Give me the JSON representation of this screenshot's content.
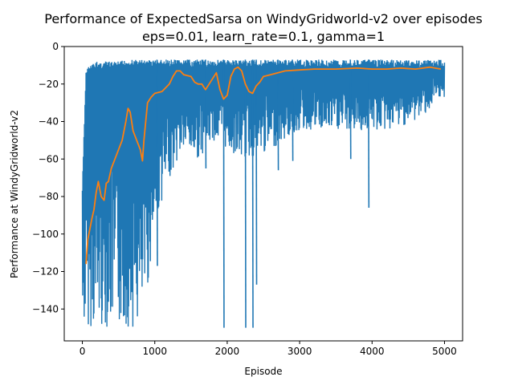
{
  "chart_data": {
    "type": "line",
    "title": "Performance of ExpectedSarsa on WindyGridworld-v2 over episodes",
    "subtitle": "eps=0.01, learn_rate=0.1, gamma=1",
    "xlabel": "Episode",
    "ylabel": "Performance at WindyGridworld-v2",
    "xlim": [
      -250,
      5250
    ],
    "ylim": [
      -157,
      0
    ],
    "xticks": [
      0,
      1000,
      2000,
      3000,
      4000,
      5000
    ],
    "yticks": [
      0,
      -20,
      -40,
      -60,
      -80,
      -100,
      -120,
      -140
    ],
    "grid": false,
    "series": [
      {
        "name": "",
        "color": "#1f77b4",
        "kind": "raw-envelope",
        "x": [
          0,
          50,
          100,
          150,
          200,
          300,
          400,
          500,
          600,
          700,
          800,
          900,
          1000,
          1200,
          1400,
          1600,
          1800,
          2000,
          2200,
          2400,
          2600,
          2800,
          3000,
          3400,
          3800,
          4200,
          4600,
          5000
        ],
        "upper": [
          -75,
          -12,
          -10,
          -9,
          -8,
          -8,
          -8,
          -8,
          -7,
          -7,
          -7,
          -7,
          -7,
          -7,
          -7,
          -7,
          -7,
          -7,
          -7,
          -7,
          -7,
          -7,
          -7,
          -7,
          -7,
          -7,
          -7,
          -7
        ],
        "lower": [
          -150,
          -150,
          -150,
          -150,
          -150,
          -150,
          -150,
          -150,
          -150,
          -150,
          -150,
          -130,
          -95,
          -70,
          -55,
          -60,
          -50,
          -55,
          -60,
          -60,
          -55,
          -50,
          -45,
          -45,
          -45,
          -45,
          -40,
          -27
        ],
        "spikes": [
          {
            "x": 1950,
            "y": -150
          },
          {
            "x": 2250,
            "y": -150
          },
          {
            "x": 2350,
            "y": -150
          },
          {
            "x": 2400,
            "y": -127
          },
          {
            "x": 1700,
            "y": -65
          },
          {
            "x": 1030,
            "y": -117
          },
          {
            "x": 3950,
            "y": -86
          },
          {
            "x": 3700,
            "y": -60
          },
          {
            "x": 2700,
            "y": -66
          },
          {
            "x": 2900,
            "y": -61
          }
        ]
      },
      {
        "name": "",
        "color": "#ff7f0e",
        "kind": "moving-average",
        "x": [
          50,
          75,
          100,
          130,
          160,
          190,
          220,
          260,
          300,
          330,
          360,
          400,
          450,
          500,
          550,
          600,
          630,
          660,
          700,
          750,
          800,
          830,
          850,
          900,
          950,
          1000,
          1100,
          1200,
          1250,
          1300,
          1350,
          1400,
          1500,
          1550,
          1600,
          1650,
          1700,
          1800,
          1850,
          1900,
          1950,
          2000,
          2050,
          2100,
          2150,
          2200,
          2250,
          2300,
          2350,
          2400,
          2450,
          2500,
          2600,
          2700,
          2800,
          3000,
          3200,
          3500,
          3800,
          4000,
          4200,
          4400,
          4600,
          4800,
          4950
        ],
        "y": [
          -116,
          -103,
          -98,
          -92,
          -87,
          -78,
          -72,
          -80,
          -82,
          -73,
          -72,
          -65,
          -60,
          -55,
          -50,
          -40,
          -33,
          -35,
          -45,
          -50,
          -55,
          -61,
          -50,
          -30,
          -27,
          -25,
          -24,
          -20,
          -16,
          -13,
          -13,
          -15,
          -16,
          -19,
          -20,
          -20,
          -23,
          -17,
          -14,
          -23,
          -28,
          -26,
          -16,
          -12,
          -11,
          -13,
          -20,
          -24,
          -25,
          -21,
          -19,
          -16,
          -15,
          -14,
          -13,
          -12.5,
          -12,
          -12,
          -11.5,
          -12,
          -12,
          -11.5,
          -12,
          -11,
          -12
        ]
      }
    ]
  }
}
